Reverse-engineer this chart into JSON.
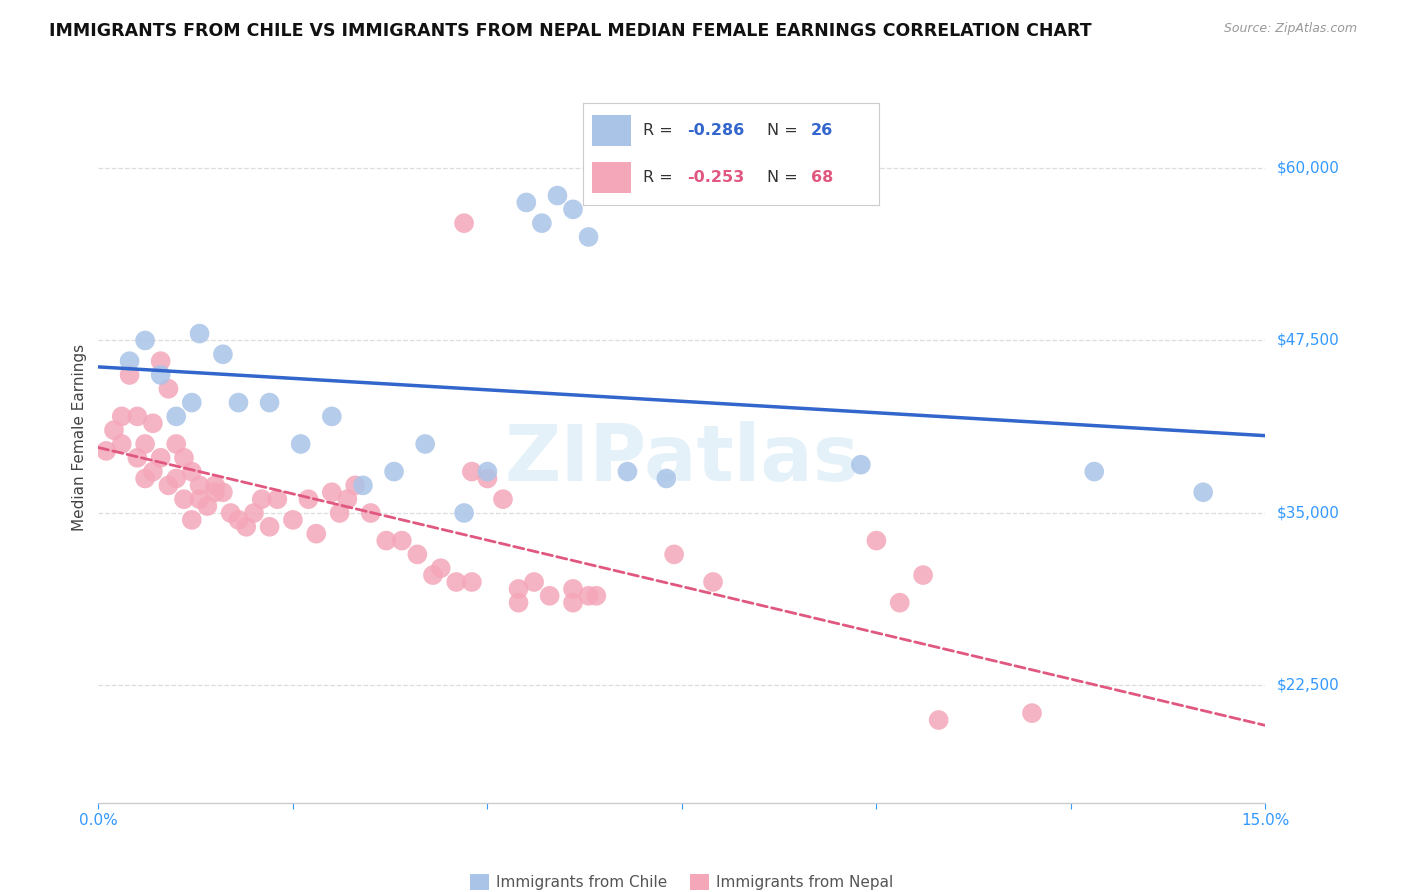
{
  "title": "IMMIGRANTS FROM CHILE VS IMMIGRANTS FROM NEPAL MEDIAN FEMALE EARNINGS CORRELATION CHART",
  "source": "Source: ZipAtlas.com",
  "ylabel": "Median Female Earnings",
  "yticks": [
    22500,
    35000,
    47500,
    60000
  ],
  "ytick_labels": [
    "$22,500",
    "$35,000",
    "$47,500",
    "$60,000"
  ],
  "xmin": 0.0,
  "xmax": 0.15,
  "ymin": 14000,
  "ymax": 67000,
  "legend_label_chile": "Immigrants from Chile",
  "legend_label_nepal": "Immigrants from Nepal",
  "chile_color": "#aac4e8",
  "nepal_color": "#f4a7b9",
  "chile_line_color": "#3366cc",
  "nepal_line_color": "#e05880",
  "watermark": "ZIPatlas",
  "chile_data_x": [
    0.004,
    0.006,
    0.008,
    0.01,
    0.012,
    0.013,
    0.016,
    0.018,
    0.022,
    0.026,
    0.03,
    0.034,
    0.038,
    0.042,
    0.047,
    0.05,
    0.055,
    0.057,
    0.059,
    0.061,
    0.063,
    0.068,
    0.073,
    0.098,
    0.128,
    0.142
  ],
  "chile_data_y": [
    46000,
    47500,
    45000,
    42000,
    43000,
    48000,
    46500,
    43000,
    43000,
    40000,
    42000,
    37000,
    38000,
    40000,
    35000,
    38000,
    57500,
    56000,
    58000,
    57000,
    55000,
    38000,
    37500,
    38500,
    38000,
    36500
  ],
  "nepal_data_x": [
    0.001,
    0.002,
    0.003,
    0.003,
    0.004,
    0.005,
    0.005,
    0.006,
    0.006,
    0.007,
    0.007,
    0.008,
    0.008,
    0.009,
    0.009,
    0.01,
    0.01,
    0.011,
    0.011,
    0.012,
    0.012,
    0.013,
    0.013,
    0.014,
    0.015,
    0.015,
    0.016,
    0.017,
    0.018,
    0.019,
    0.02,
    0.021,
    0.022,
    0.023,
    0.025,
    0.027,
    0.028,
    0.03,
    0.031,
    0.032,
    0.033,
    0.035,
    0.037,
    0.039,
    0.041,
    0.043,
    0.044,
    0.046,
    0.048,
    0.048,
    0.05,
    0.052,
    0.054,
    0.054,
    0.056,
    0.058,
    0.061,
    0.061,
    0.063,
    0.064,
    0.047,
    0.074,
    0.079,
    0.1,
    0.103,
    0.106,
    0.108,
    0.12
  ],
  "nepal_data_y": [
    39500,
    41000,
    42000,
    40000,
    45000,
    42000,
    39000,
    40000,
    37500,
    41500,
    38000,
    46000,
    39000,
    44000,
    37000,
    40000,
    37500,
    39000,
    36000,
    38000,
    34500,
    37000,
    36000,
    35500,
    37000,
    36500,
    36500,
    35000,
    34500,
    34000,
    35000,
    36000,
    34000,
    36000,
    34500,
    36000,
    33500,
    36500,
    35000,
    36000,
    37000,
    35000,
    33000,
    33000,
    32000,
    30500,
    31000,
    30000,
    30000,
    38000,
    37500,
    36000,
    29500,
    28500,
    30000,
    29000,
    29500,
    28500,
    29000,
    29000,
    56000,
    32000,
    30000,
    33000,
    28500,
    30500,
    20000,
    20500
  ]
}
